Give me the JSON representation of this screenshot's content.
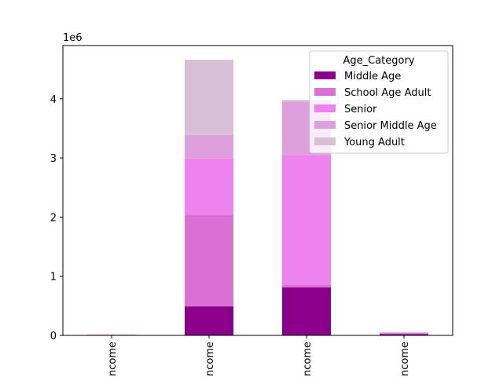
{
  "chart_data": {
    "type": "bar",
    "stacked": true,
    "categories": [
      "ncome",
      "ncome",
      "ncome",
      "ncome"
    ],
    "y_offset_label": "1e6",
    "ylim": [
      0,
      4900000
    ],
    "yticks": [
      0,
      1000000,
      2000000,
      3000000,
      4000000
    ],
    "ytick_labels": [
      "0",
      "1",
      "2",
      "3",
      "4"
    ],
    "legend_title": "Age_Category",
    "legend_position": "upper-right",
    "series": [
      {
        "name": "Middle Age",
        "color": "#8b008b",
        "values": [
          5000,
          490000,
          810000,
          20000
        ]
      },
      {
        "name": "School Age Adult",
        "color": "#da70d6",
        "values": [
          5000,
          1550000,
          40000,
          15000
        ]
      },
      {
        "name": "Senior",
        "color": "#ee82ee",
        "values": [
          3000,
          950000,
          2200000,
          10000
        ]
      },
      {
        "name": "Senior Middle Age",
        "color": "#dda0dd",
        "values": [
          2000,
          400000,
          900000,
          5000
        ]
      },
      {
        "name": "Young Adult",
        "color": "#d8bfd8",
        "values": [
          1000,
          1270000,
          30000,
          3000
        ]
      }
    ]
  }
}
